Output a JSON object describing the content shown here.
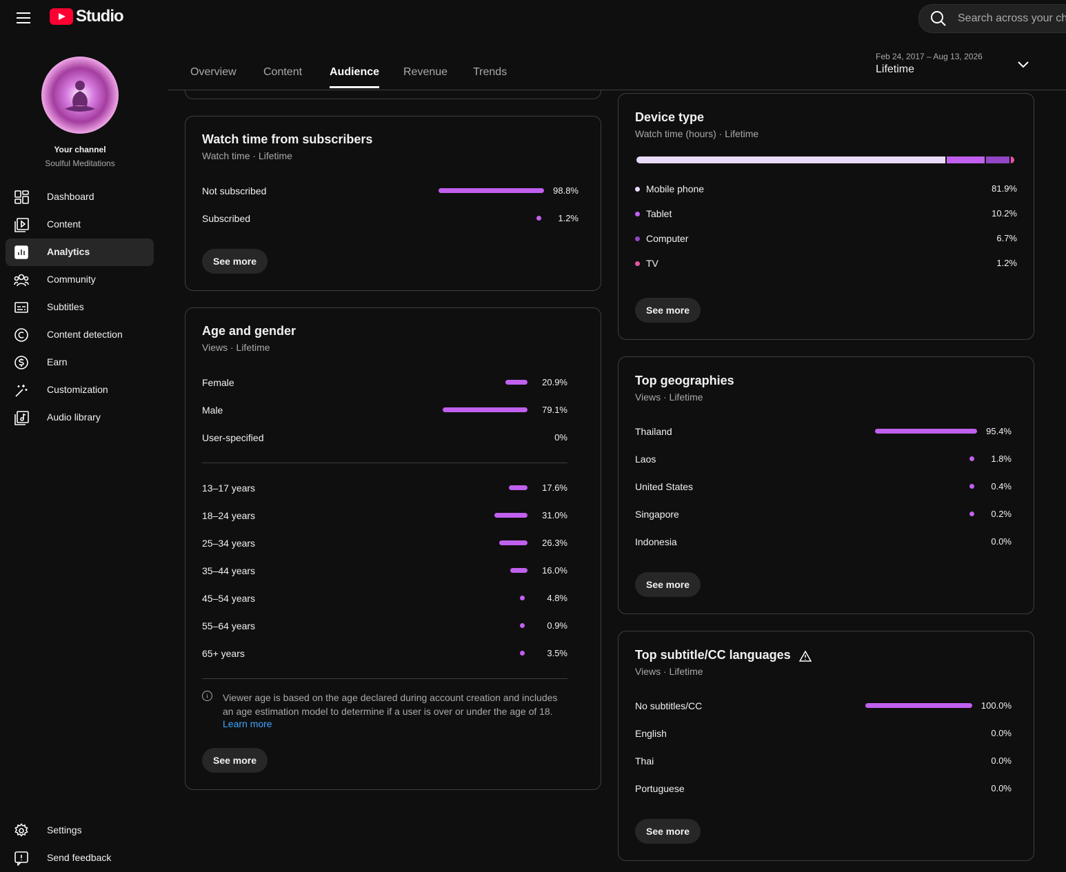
{
  "header": {
    "logo_text": "Studio",
    "search_placeholder": "Search across your channel"
  },
  "sidebar": {
    "channel_label": "Your channel",
    "channel_name": "Soulful Meditations",
    "nav": [
      {
        "label": "Dashboard",
        "active": false
      },
      {
        "label": "Content",
        "active": false
      },
      {
        "label": "Analytics",
        "active": true
      },
      {
        "label": "Community",
        "active": false
      },
      {
        "label": "Subtitles",
        "active": false
      },
      {
        "label": "Content detection",
        "active": false
      },
      {
        "label": "Earn",
        "active": false
      },
      {
        "label": "Customization",
        "active": false
      },
      {
        "label": "Audio library",
        "active": false
      }
    ],
    "bottom_nav": [
      "Settings",
      "Send feedback"
    ]
  },
  "tabs": [
    {
      "label": "Overview",
      "active": false
    },
    {
      "label": "Content",
      "active": false
    },
    {
      "label": "Audience",
      "active": true
    },
    {
      "label": "Revenue",
      "active": false
    },
    {
      "label": "Trends",
      "active": false
    }
  ],
  "date_range": {
    "range": "Feb 24, 2017 – Aug 13, 2026",
    "label": "Lifetime"
  },
  "cards": {
    "watch_time": {
      "title": "Watch time from subscribers",
      "subtitle": "Watch time · Lifetime",
      "rows": [
        {
          "label": "Not subscribed",
          "value": 98.8,
          "value_label": "98.8%"
        },
        {
          "label": "Subscribed",
          "value": 1.2,
          "value_label": "1.2%"
        }
      ],
      "button": "See more"
    },
    "age_gender": {
      "title": "Age and gender",
      "subtitle": "Views · Lifetime",
      "gender_rows": [
        {
          "label": "Female",
          "value": 20.9,
          "value_label": "20.9%"
        },
        {
          "label": "Male",
          "value": 79.1,
          "value_label": "79.1%"
        },
        {
          "label": "User-specified",
          "value": 0,
          "value_label": "0%"
        }
      ],
      "age_rows": [
        {
          "label": "13–17 years",
          "value": 17.6,
          "value_label": "17.6%"
        },
        {
          "label": "18–24 years",
          "value": 31.0,
          "value_label": "31.0%"
        },
        {
          "label": "25–34 years",
          "value": 26.3,
          "value_label": "26.3%"
        },
        {
          "label": "35–44 years",
          "value": 16.0,
          "value_label": "16.0%"
        },
        {
          "label": "45–54 years",
          "value": 4.8,
          "value_label": "4.8%"
        },
        {
          "label": "55–64 years",
          "value": 0.9,
          "value_label": "0.9%"
        },
        {
          "label": "65+ years",
          "value": 3.5,
          "value_label": "3.5%"
        }
      ],
      "note": "Viewer age is based on the age declared during account creation and includes an age estimation model to determine if a user is over or under the age of 18.",
      "learn_more": "Learn more",
      "button": "See more"
    },
    "device_type": {
      "title": "Device type",
      "subtitle": "Watch time (hours) · Lifetime",
      "segments": [
        {
          "label": "Mobile phone",
          "value": 81.9,
          "value_label": "81.9%",
          "color": "#ead9f7"
        },
        {
          "label": "Tablet",
          "value": 10.2,
          "value_label": "10.2%",
          "color": "#c160ee"
        },
        {
          "label": "Computer",
          "value": 6.7,
          "value_label": "6.7%",
          "color": "#9245c6"
        },
        {
          "label": "TV",
          "value": 1.2,
          "value_label": "1.2%",
          "color": "#e3579e"
        }
      ],
      "button": "See more"
    },
    "geographies": {
      "title": "Top geographies",
      "subtitle": "Views · Lifetime",
      "rows": [
        {
          "label": "Thailand",
          "value": 95.4,
          "value_label": "95.4%"
        },
        {
          "label": "Laos",
          "value": 1.8,
          "value_label": "1.8%"
        },
        {
          "label": "United States",
          "value": 0.4,
          "value_label": "0.4%"
        },
        {
          "label": "Singapore",
          "value": 0.2,
          "value_label": "0.2%"
        },
        {
          "label": "Indonesia",
          "value": 0.0,
          "value_label": "0.0%"
        }
      ],
      "button": "See more"
    },
    "subtitles": {
      "title": "Top subtitle/CC languages",
      "subtitle": "Views · Lifetime",
      "rows": [
        {
          "label": "No subtitles/CC",
          "value": 100.0,
          "value_label": "100.0%"
        },
        {
          "label": "English",
          "value": 0.0,
          "value_label": "0.0%"
        },
        {
          "label": "Thai",
          "value": 0.0,
          "value_label": "0.0%"
        },
        {
          "label": "Portuguese",
          "value": 0.0,
          "value_label": "0.0%"
        }
      ],
      "button": "See more"
    }
  }
}
